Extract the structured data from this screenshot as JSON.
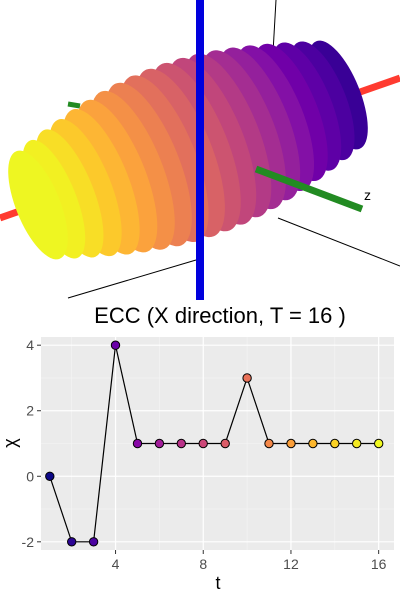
{
  "render_3d": {
    "axis_label_z": "z",
    "colors": {
      "x_axis": "#ff3b30",
      "y_axis": "#0000dd",
      "z_axis": "#228b22"
    }
  },
  "chart_data": {
    "type": "line",
    "title": "ECC (X direction, T = 16 )",
    "xlabel": "t",
    "ylabel": "χ",
    "xlim": [
      0.6,
      16.7
    ],
    "ylim": [
      -2.25,
      4.25
    ],
    "xticks": [
      4,
      8,
      12,
      16
    ],
    "yticks": [
      -2,
      0,
      2,
      4
    ],
    "grid": true,
    "legend": "none",
    "x": [
      1,
      2,
      3,
      4,
      5,
      6,
      7,
      8,
      9,
      10,
      11,
      12,
      13,
      14,
      15,
      16
    ],
    "values": [
      0,
      -2,
      -2,
      4,
      1,
      1,
      1,
      1,
      1,
      3,
      1,
      1,
      1,
      1,
      1,
      1
    ],
    "point_colors": [
      "#0d0887",
      "#2c0594",
      "#4b03a1",
      "#6a00a8",
      "#8707a6",
      "#a21d9a",
      "#b93289",
      "#cc4778",
      "#db5c68",
      "#e97158",
      "#f48849",
      "#fb9f3a",
      "#fdb72d",
      "#fcd225",
      "#f4ea23",
      "#f0f921"
    ]
  }
}
